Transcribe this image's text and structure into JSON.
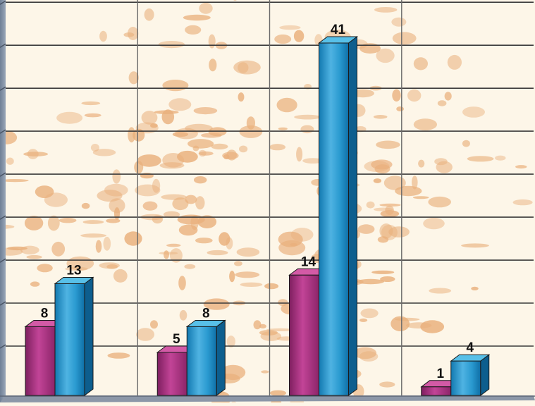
{
  "chart_data": {
    "type": "bar",
    "title": "",
    "xlabel": "",
    "ylabel": "",
    "categories": [
      "",
      "",
      "",
      ""
    ],
    "series": [
      {
        "values": [
          8,
          5,
          14,
          1
        ],
        "color": "#b0307e"
      },
      {
        "values": [
          13,
          8,
          41,
          4
        ],
        "color": "#1e8fc4"
      }
    ],
    "ylim": [
      0,
      45
    ],
    "gridlines": true,
    "grid_color": "#3b3b3b",
    "background_color": "#fdf6e8",
    "background_pattern_color": "#e9b07c",
    "data_labels": [
      "8",
      "13",
      "5",
      "8",
      "14",
      "41",
      "1",
      "4"
    ]
  }
}
